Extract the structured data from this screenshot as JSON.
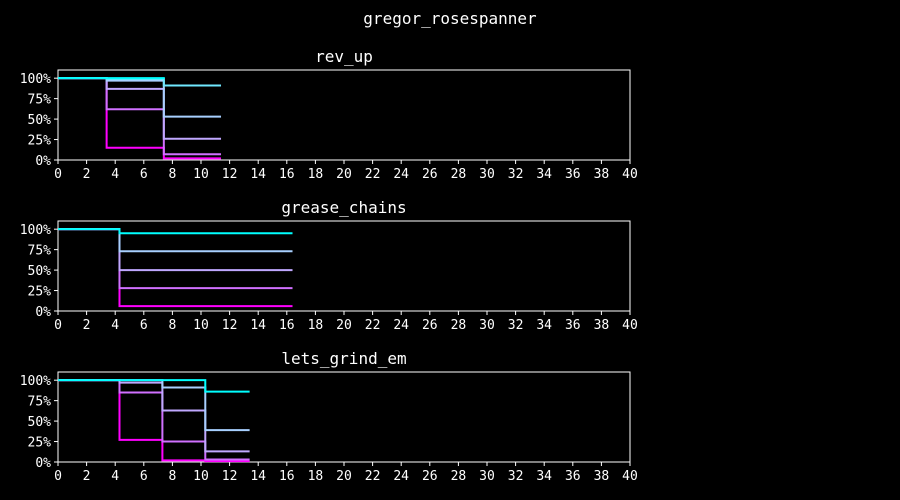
{
  "title": "gregor_rosespanner",
  "colors": {
    "background": "#000000",
    "axes": "#ffffff",
    "text": "#ffffff",
    "step_palette": [
      "#ff00ff",
      "#d070ff",
      "#c0a8ff",
      "#a8d0ff",
      "#70e8ff",
      "#00ffff"
    ]
  },
  "chart_data": [
    {
      "type": "line",
      "step": "post",
      "title": "rev_up",
      "xlim": [
        0,
        40
      ],
      "ylim": [
        0,
        1.1
      ],
      "x_ticks": [
        "0",
        "2",
        "4",
        "6",
        "8",
        "10",
        "12",
        "14",
        "16",
        "18",
        "20",
        "22",
        "24",
        "26",
        "28",
        "30",
        "32",
        "34",
        "36",
        "38",
        "40"
      ],
      "y_ticks": [
        {
          "value": 0,
          "label": "0%"
        },
        {
          "value": 0.25,
          "label": "25%"
        },
        {
          "value": 0.5,
          "label": "50%"
        },
        {
          "value": 0.75,
          "label": "75%"
        },
        {
          "value": 1,
          "label": "100%"
        }
      ],
      "series": [
        {
          "color": "#ff00ff",
          "points": [
            [
              0,
              1
            ],
            [
              3.4,
              0.15
            ],
            [
              7.4,
              0.02
            ],
            [
              11.4,
              0.02
            ]
          ]
        },
        {
          "color": "#d070ff",
          "points": [
            [
              0,
              1
            ],
            [
              3.4,
              0.62
            ],
            [
              7.4,
              0.07
            ],
            [
              11.4,
              0.07
            ]
          ]
        },
        {
          "color": "#c0a8ff",
          "points": [
            [
              0,
              1
            ],
            [
              3.4,
              0.87
            ],
            [
              7.4,
              0.26
            ],
            [
              11.4,
              0.26
            ]
          ]
        },
        {
          "color": "#a8d0ff",
          "points": [
            [
              0,
              1
            ],
            [
              3.4,
              0.97
            ],
            [
              7.4,
              0.53
            ],
            [
              11.4,
              0.53
            ]
          ]
        },
        {
          "color": "#70e8ff",
          "points": [
            [
              0,
              1
            ],
            [
              3.4,
              0.99
            ],
            [
              7.4,
              0.91
            ],
            [
              11.4,
              0.91
            ]
          ]
        },
        {
          "color": "#00ffff",
          "points": [
            [
              0,
              1
            ],
            [
              7.4,
              0.99
            ]
          ]
        }
      ]
    },
    {
      "type": "line",
      "step": "post",
      "title": "grease_chains",
      "xlim": [
        0,
        40
      ],
      "ylim": [
        0,
        1.1
      ],
      "x_ticks": [
        "0",
        "2",
        "4",
        "6",
        "8",
        "10",
        "12",
        "14",
        "16",
        "18",
        "20",
        "22",
        "24",
        "26",
        "28",
        "30",
        "32",
        "34",
        "36",
        "38",
        "40"
      ],
      "y_ticks": [
        {
          "value": 0,
          "label": "0%"
        },
        {
          "value": 0.25,
          "label": "25%"
        },
        {
          "value": 0.5,
          "label": "50%"
        },
        {
          "value": 0.75,
          "label": "75%"
        },
        {
          "value": 1,
          "label": "100%"
        }
      ],
      "series": [
        {
          "color": "#ff00ff",
          "points": [
            [
              0,
              1
            ],
            [
              4.3,
              0.06
            ],
            [
              16.4,
              0.06
            ]
          ]
        },
        {
          "color": "#d070ff",
          "points": [
            [
              0,
              1
            ],
            [
              4.3,
              0.28
            ],
            [
              16.4,
              0.28
            ]
          ]
        },
        {
          "color": "#c0a8ff",
          "points": [
            [
              0,
              1
            ],
            [
              4.3,
              0.5
            ],
            [
              16.4,
              0.5
            ]
          ]
        },
        {
          "color": "#a8d0ff",
          "points": [
            [
              0,
              1
            ],
            [
              4.3,
              0.73
            ],
            [
              16.4,
              0.73
            ]
          ]
        },
        {
          "color": "#00ffff",
          "points": [
            [
              0,
              1
            ],
            [
              4.3,
              0.95
            ],
            [
              16.4,
              0.95
            ]
          ]
        }
      ]
    },
    {
      "type": "line",
      "step": "post",
      "title": "lets_grind_em",
      "xlim": [
        0,
        40
      ],
      "ylim": [
        0,
        1.1
      ],
      "x_ticks": [
        "0",
        "2",
        "4",
        "6",
        "8",
        "10",
        "12",
        "14",
        "16",
        "18",
        "20",
        "22",
        "24",
        "26",
        "28",
        "30",
        "32",
        "34",
        "36",
        "38",
        "40"
      ],
      "y_ticks": [
        {
          "value": 0,
          "label": "0%"
        },
        {
          "value": 0.25,
          "label": "25%"
        },
        {
          "value": 0.5,
          "label": "50%"
        },
        {
          "value": 0.75,
          "label": "75%"
        },
        {
          "value": 1,
          "label": "100%"
        }
      ],
      "series": [
        {
          "color": "#ff00ff",
          "points": [
            [
              0,
              1
            ],
            [
              4.3,
              0.27
            ],
            [
              7.3,
              0.02
            ],
            [
              10.3,
              0.01
            ],
            [
              13.4,
              0.01
            ]
          ]
        },
        {
          "color": "#d070ff",
          "points": [
            [
              0,
              1
            ],
            [
              4.3,
              0.85
            ],
            [
              7.3,
              0.25
            ],
            [
              10.3,
              0.03
            ],
            [
              13.4,
              0.03
            ]
          ]
        },
        {
          "color": "#c0a8ff",
          "points": [
            [
              0,
              1
            ],
            [
              4.3,
              0.97
            ],
            [
              7.3,
              0.63
            ],
            [
              10.3,
              0.13
            ],
            [
              13.4,
              0.13
            ]
          ]
        },
        {
          "color": "#a8d0ff",
          "points": [
            [
              0,
              1
            ],
            [
              7.3,
              0.91
            ],
            [
              10.3,
              0.39
            ],
            [
              13.4,
              0.39
            ]
          ]
        },
        {
          "color": "#00ffff",
          "points": [
            [
              0,
              1
            ],
            [
              10.3,
              0.86
            ],
            [
              13.4,
              0.86
            ]
          ]
        }
      ]
    }
  ]
}
